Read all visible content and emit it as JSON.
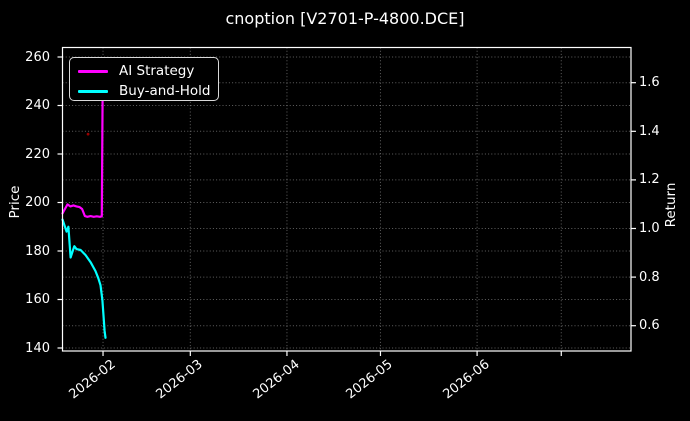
{
  "chart_data": {
    "type": "line",
    "title": "cnoption [V2701-P-4800.DCE]",
    "left_axis": {
      "label": "Price",
      "ticks": [
        140,
        160,
        180,
        200,
        220,
        240,
        260
      ],
      "range": [
        138.3,
        264.2
      ]
    },
    "right_axis": {
      "label": "Return",
      "ticks": [
        0.6,
        0.8,
        1.0,
        1.2,
        1.4,
        1.6
      ],
      "range": [
        0.49,
        1.75
      ]
    },
    "x_axis": {
      "tick_labels": [
        "2026-02",
        "2026-03",
        "2026-04",
        "2026-05",
        "2026-06"
      ],
      "tick_positions_days": [
        13,
        41,
        72,
        102,
        133
      ],
      "extra_unlabeled_tick_day": 160,
      "range_days": [
        0,
        182.4
      ]
    },
    "grid": true,
    "legend": {
      "position": "upper-left",
      "entries": [
        "AI Strategy",
        "Buy-and-Hold"
      ]
    },
    "series": [
      {
        "name": "AI Strategy",
        "color": "#ff00ff",
        "x": [
          0,
          1.6,
          2.5,
          3.5,
          4.5,
          5.5,
          6.3,
          7.2,
          8,
          9,
          10,
          11,
          12,
          12.6,
          12.9
        ],
        "values": [
          195.5,
          199.2,
          198.4,
          198.8,
          198.4,
          198.1,
          197.3,
          194.4,
          194.1,
          194.4,
          194.1,
          194.3,
          194.1,
          194.3,
          250
        ]
      },
      {
        "name": "Buy-and-Hold",
        "color": "#00ffff",
        "x": [
          0,
          1.3,
          1.9,
          2.6,
          3.8,
          4.5,
          5.8,
          7.4,
          9,
          10.6,
          11.5,
          12.2,
          12.8,
          13.5,
          13.8
        ],
        "values": [
          193,
          188,
          190,
          177.3,
          182,
          180.8,
          180.4,
          178.3,
          175.4,
          171.7,
          168.8,
          165.9,
          159.7,
          147,
          144.2
        ]
      }
    ],
    "marker_dots": [
      {
        "x": 8.2,
        "price": 228.2,
        "color": "#990000"
      }
    ]
  },
  "colors": {
    "background": "#000000",
    "text": "#ffffff",
    "axes": "#ffffff",
    "grid_line": "#ffffff"
  }
}
